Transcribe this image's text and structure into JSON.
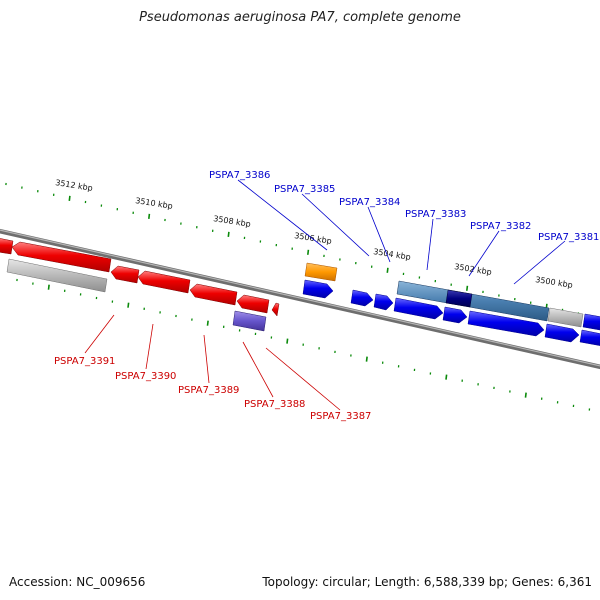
{
  "title": "Pseudomonas aeruginosa PA7, complete genome",
  "footer": {
    "accession": "Accession: NC_009656",
    "summary": "Topology: circular; Length: 6,588,339 bp; Genes: 6,361"
  },
  "colors": {
    "forward": "#0000ee",
    "reverse": "#ee0000",
    "tick": "#0a8a0a",
    "backbone": "#808080",
    "pseudo": "#b0b0b0",
    "rna_orange": "#ff9900",
    "purple": "#6655cc",
    "steel_blue": "#4a7fb0",
    "navy": "#000080"
  },
  "ticks": [
    {
      "label": "3512 kbp",
      "pos": 3512
    },
    {
      "label": "3510 kbp",
      "pos": 3510
    },
    {
      "label": "3508 kbp",
      "pos": 3508
    },
    {
      "label": "3506 kbp",
      "pos": 3506
    },
    {
      "label": "3504 kbp",
      "pos": 3504
    },
    {
      "label": "3502 kbp",
      "pos": 3502
    },
    {
      "label": "3500 kbp",
      "pos": 3500
    }
  ],
  "gene_labels_top": [
    {
      "name": "PSPA7_3386"
    },
    {
      "name": "PSPA7_3385"
    },
    {
      "name": "PSPA7_3384"
    },
    {
      "name": "PSPA7_3383"
    },
    {
      "name": "PSPA7_3382"
    },
    {
      "name": "PSPA7_3381"
    }
  ],
  "gene_labels_bottom": [
    {
      "name": "PSPA7_3391"
    },
    {
      "name": "PSPA7_3390"
    },
    {
      "name": "PSPA7_3389"
    },
    {
      "name": "PSPA7_3388"
    },
    {
      "name": "PSPA7_3387"
    }
  ]
}
